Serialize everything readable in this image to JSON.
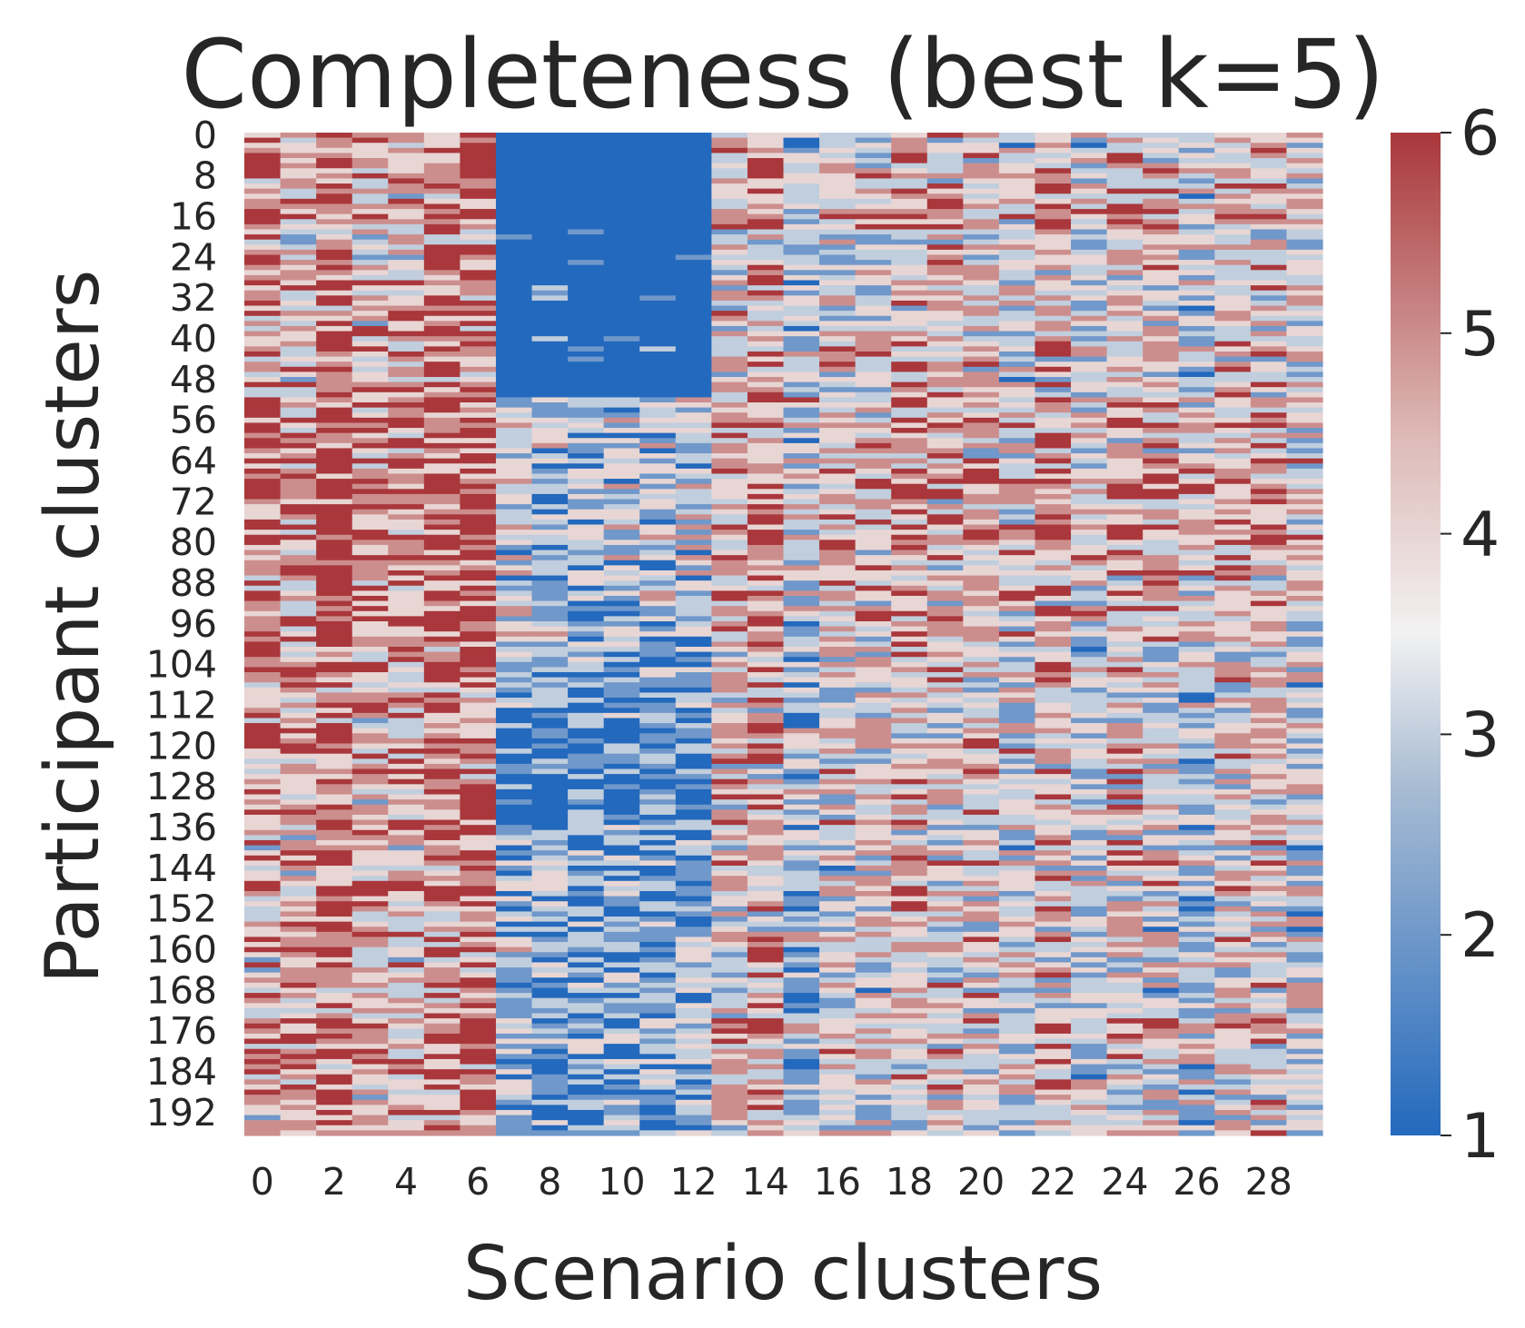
{
  "chart_data": {
    "type": "heatmap",
    "title": "Completeness (best k=5)",
    "xlabel": "Scenario clusters",
    "ylabel": "Participant clusters",
    "n_cols": 30,
    "n_rows": 197,
    "x_tick_labels": [
      "0",
      "2",
      "4",
      "6",
      "8",
      "10",
      "12",
      "14",
      "16",
      "18",
      "20",
      "22",
      "24",
      "26",
      "28"
    ],
    "y_tick_labels": [
      "0",
      "8",
      "16",
      "24",
      "32",
      "40",
      "48",
      "56",
      "64",
      "72",
      "80",
      "88",
      "96",
      "104",
      "112",
      "120",
      "128",
      "136",
      "144",
      "152",
      "160",
      "168",
      "176",
      "184",
      "192"
    ],
    "colorbar": {
      "colormap": "vlag",
      "vmin": 1,
      "vmax": 6,
      "tick_labels": [
        "1",
        "2",
        "3",
        "4",
        "5",
        "6"
      ],
      "colors": [
        "#2369bd",
        "#a9bcd3",
        "#f2f2f2",
        "#ddb9b6",
        "#a9373b"
      ]
    },
    "column_profile_mean": [
      4.8,
      4.3,
      5.3,
      4.3,
      4.3,
      5.0,
      5.2,
      2.6,
      2.2,
      2.2,
      2.3,
      2.2,
      2.4,
      3.9,
      4.3,
      2.8,
      3.7,
      3.7,
      4.2,
      3.9,
      3.8,
      3.5,
      4.2,
      3.3,
      4.0,
      3.8,
      3.2,
      3.9,
      4.1,
      3.3
    ],
    "block_pattern": {
      "low_block_columns": [
        7,
        12
      ],
      "low_block_rows": [
        0,
        51
      ],
      "second_low_block_rows": [
        115,
        135
      ]
    },
    "value_grid_note": "Cell values on a 1-6 scale; per-cell values estimated row-by-row."
  }
}
